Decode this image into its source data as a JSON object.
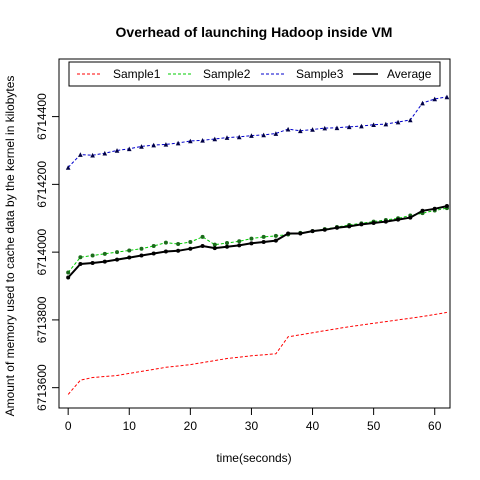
{
  "chart_data": {
    "type": "line",
    "title": "Overhead of launching Hadoop inside VM",
    "xlabel": "time(seconds)",
    "ylabel": "Amount of memory used to cache data by the kernel in kilobytes",
    "xlim": [
      -1.5,
      62.5
    ],
    "ylim": [
      6713540,
      6714570
    ],
    "xticks": [
      0,
      10,
      20,
      30,
      40,
      50,
      60
    ],
    "yticks": [
      6713600,
      6713800,
      6714000,
      6714200,
      6714400
    ],
    "grid": false,
    "legend_position": "top",
    "x": [
      0,
      2,
      4,
      6,
      8,
      10,
      12,
      14,
      16,
      18,
      20,
      22,
      24,
      26,
      28,
      30,
      32,
      34,
      36,
      38,
      40,
      42,
      44,
      46,
      48,
      50,
      52,
      54,
      56,
      58,
      60,
      62
    ],
    "series": [
      {
        "name": "Sample1",
        "color": "#ff0000",
        "style": "dashed",
        "marker": "none",
        "values": [
          6713580,
          6713622,
          6713630,
          6713633,
          6713636,
          6713642,
          6713648,
          6713654,
          6713660,
          6713664,
          6713668,
          6713674,
          6713680,
          6713686,
          6713690,
          6713694,
          6713697,
          6713700,
          6713750,
          6713756,
          6713762,
          6713768,
          6713774,
          6713780,
          6713785,
          6713790,
          6713795,
          6713800,
          6713805,
          6713810,
          6713816,
          6713822
        ]
      },
      {
        "name": "Sample2",
        "color": "#00cc00",
        "style": "dashed",
        "marker": "circle",
        "values": [
          6713940,
          6713985,
          6713990,
          6713995,
          6714000,
          6714005,
          6714010,
          6714018,
          6714028,
          6714024,
          6714030,
          6714045,
          6714022,
          6714027,
          6714032,
          6714040,
          6714045,
          6714048,
          6714052,
          6714057,
          6714062,
          6714068,
          6714074,
          6714080,
          6714085,
          6714090,
          6714095,
          6714100,
          6714108,
          6714115,
          6714123,
          6714130
        ]
      },
      {
        "name": "Sample3",
        "color": "#0000cc",
        "style": "dashed",
        "marker": "triangle",
        "values": [
          6714250,
          6714288,
          6714286,
          6714292,
          6714300,
          6714305,
          6714312,
          6714316,
          6714318,
          6714322,
          6714328,
          6714330,
          6714334,
          6714338,
          6714340,
          6714344,
          6714346,
          6714350,
          6714363,
          6714358,
          6714362,
          6714366,
          6714367,
          6714370,
          6714372,
          6714376,
          6714378,
          6714384,
          6714390,
          6714440,
          6714452,
          6714458
        ]
      },
      {
        "name": "Average",
        "color": "#000000",
        "style": "solid",
        "marker": "circle",
        "values": [
          6713925,
          6713965,
          6713968,
          6713972,
          6713978,
          6713984,
          6713990,
          6713996,
          6714002,
          6714004,
          6714010,
          6714018,
          6714012,
          6714016,
          6714020,
          6714026,
          6714030,
          6714034,
          6714055,
          6714055,
          6714062,
          6714066,
          6714072,
          6714076,
          6714082,
          6714086,
          6714090,
          6714096,
          6714102,
          6714122,
          6714128,
          6714136
        ]
      }
    ]
  }
}
